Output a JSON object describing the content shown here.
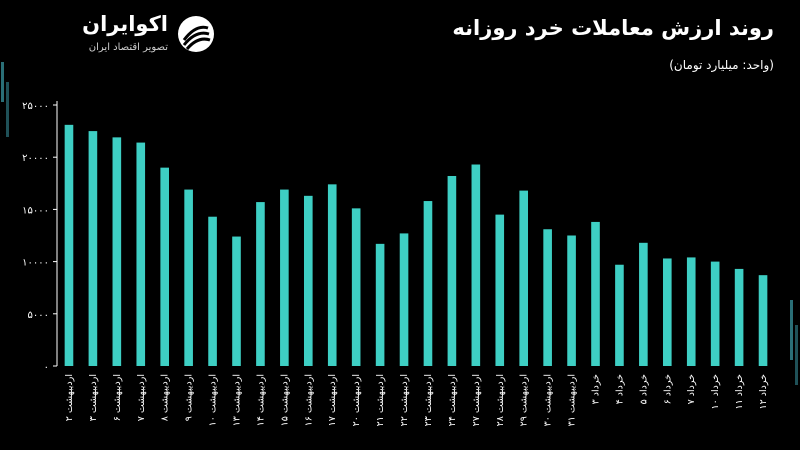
{
  "header": {
    "title": "روند ارزش معاملات خرد روزانه",
    "subtitle": "(واحد: میلیارد تومان)"
  },
  "brand": {
    "name": "اکوایران",
    "tagline": "تصویر اقتصاد ایران"
  },
  "colors": {
    "background": "#000000",
    "bar": "#3ecfc4",
    "axis": "#ffffff",
    "text": "#ffffff"
  },
  "chart_data": {
    "type": "bar",
    "title": "روند ارزش معاملات خرد روزانه",
    "subtitle": "(واحد: میلیارد تومان)",
    "ylim": [
      0,
      25000
    ],
    "yticks": [
      0,
      5000,
      10000,
      15000,
      20000,
      25000
    ],
    "ytick_labels": [
      "۰",
      "۵۰۰۰",
      "۱۰۰۰۰",
      "۱۵۰۰۰",
      "۲۰۰۰۰",
      "۲۵۰۰۰"
    ],
    "grid": false,
    "categories": [
      "اردیبهشت ۲",
      "اردیبهشت ۳",
      "اردیبهشت ۶",
      "اردیبهشت ۷",
      "اردیبهشت ۸",
      "اردیبهشت ۹",
      "اردیبهشت ۱۰",
      "اردیبهشت ۱۳",
      "اردیبهشت ۱۴",
      "اردیبهشت ۱۵",
      "اردیبهشت ۱۶",
      "اردیبهشت ۱۷",
      "اردیبهشت ۲۰",
      "اردیبهشت ۲۱",
      "اردیبهشت ۲۲",
      "اردیبهشت ۲۳",
      "اردیبهشت ۲۴",
      "اردیبهشت ۲۷",
      "اردیبهشت ۲۸",
      "اردیبهشت ۲۹",
      "اردیبهشت ۳۰",
      "اردیبهشت ۳۱",
      "خرداد ۳",
      "خرداد ۴",
      "خرداد ۵",
      "خرداد ۶",
      "خرداد ۷",
      "خرداد ۱۰",
      "خرداد ۱۱",
      "خرداد ۱۲"
    ],
    "values": [
      23100,
      22500,
      21900,
      21400,
      19000,
      16900,
      14300,
      12400,
      15700,
      16900,
      16300,
      17400,
      15100,
      11700,
      12700,
      15800,
      18200,
      19300,
      14500,
      16800,
      13100,
      12500,
      13800,
      9700,
      11800,
      10300,
      10400,
      10000,
      9300,
      8700
    ]
  }
}
